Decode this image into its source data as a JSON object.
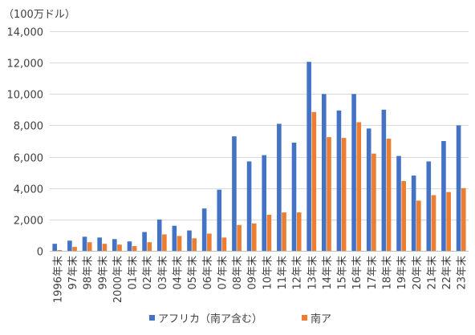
{
  "chart_data": {
    "type": "bar",
    "unit": "（100万ドル）",
    "ylim": [
      0,
      14000
    ],
    "yticks": [
      0,
      2000,
      4000,
      6000,
      8000,
      10000,
      12000,
      14000
    ],
    "ytick_labels": [
      "0",
      "2,000",
      "4,000",
      "6,000",
      "8,000",
      "10,000",
      "12,000",
      "14,000"
    ],
    "grid": true,
    "legend_position": "bottom",
    "categories": [
      "1996年末",
      "97年末",
      "98年末",
      "99年末",
      "2000年末",
      "01年末",
      "02年末",
      "03年末",
      "04年末",
      "05年末",
      "06年末",
      "07年末",
      "08年末",
      "09年末",
      "10年末",
      "11年末",
      "12年末",
      "13年末",
      "14年末",
      "15年末",
      "16年末",
      "17年末",
      "18年末",
      "19年末",
      "20年末",
      "21年末",
      "22年末",
      "23年末"
    ],
    "series": [
      {
        "name": "アフリカ（南ア含む）",
        "color": "#4472c4",
        "values": [
          450,
          650,
          900,
          850,
          750,
          600,
          1200,
          2000,
          1600,
          1300,
          2700,
          3900,
          7300,
          5700,
          6100,
          8100,
          6900,
          12050,
          10000,
          8950,
          10000,
          7800,
          9000,
          6050,
          4800,
          5700,
          7000,
          8000
        ]
      },
      {
        "name": "南ア",
        "color": "#ed7d31",
        "values": [
          50,
          250,
          550,
          450,
          400,
          300,
          550,
          1050,
          950,
          800,
          1100,
          850,
          1650,
          1750,
          2300,
          2450,
          2450,
          8850,
          7250,
          7200,
          8200,
          6200,
          7150,
          4450,
          3200,
          3550,
          3750,
          4000
        ]
      }
    ]
  }
}
